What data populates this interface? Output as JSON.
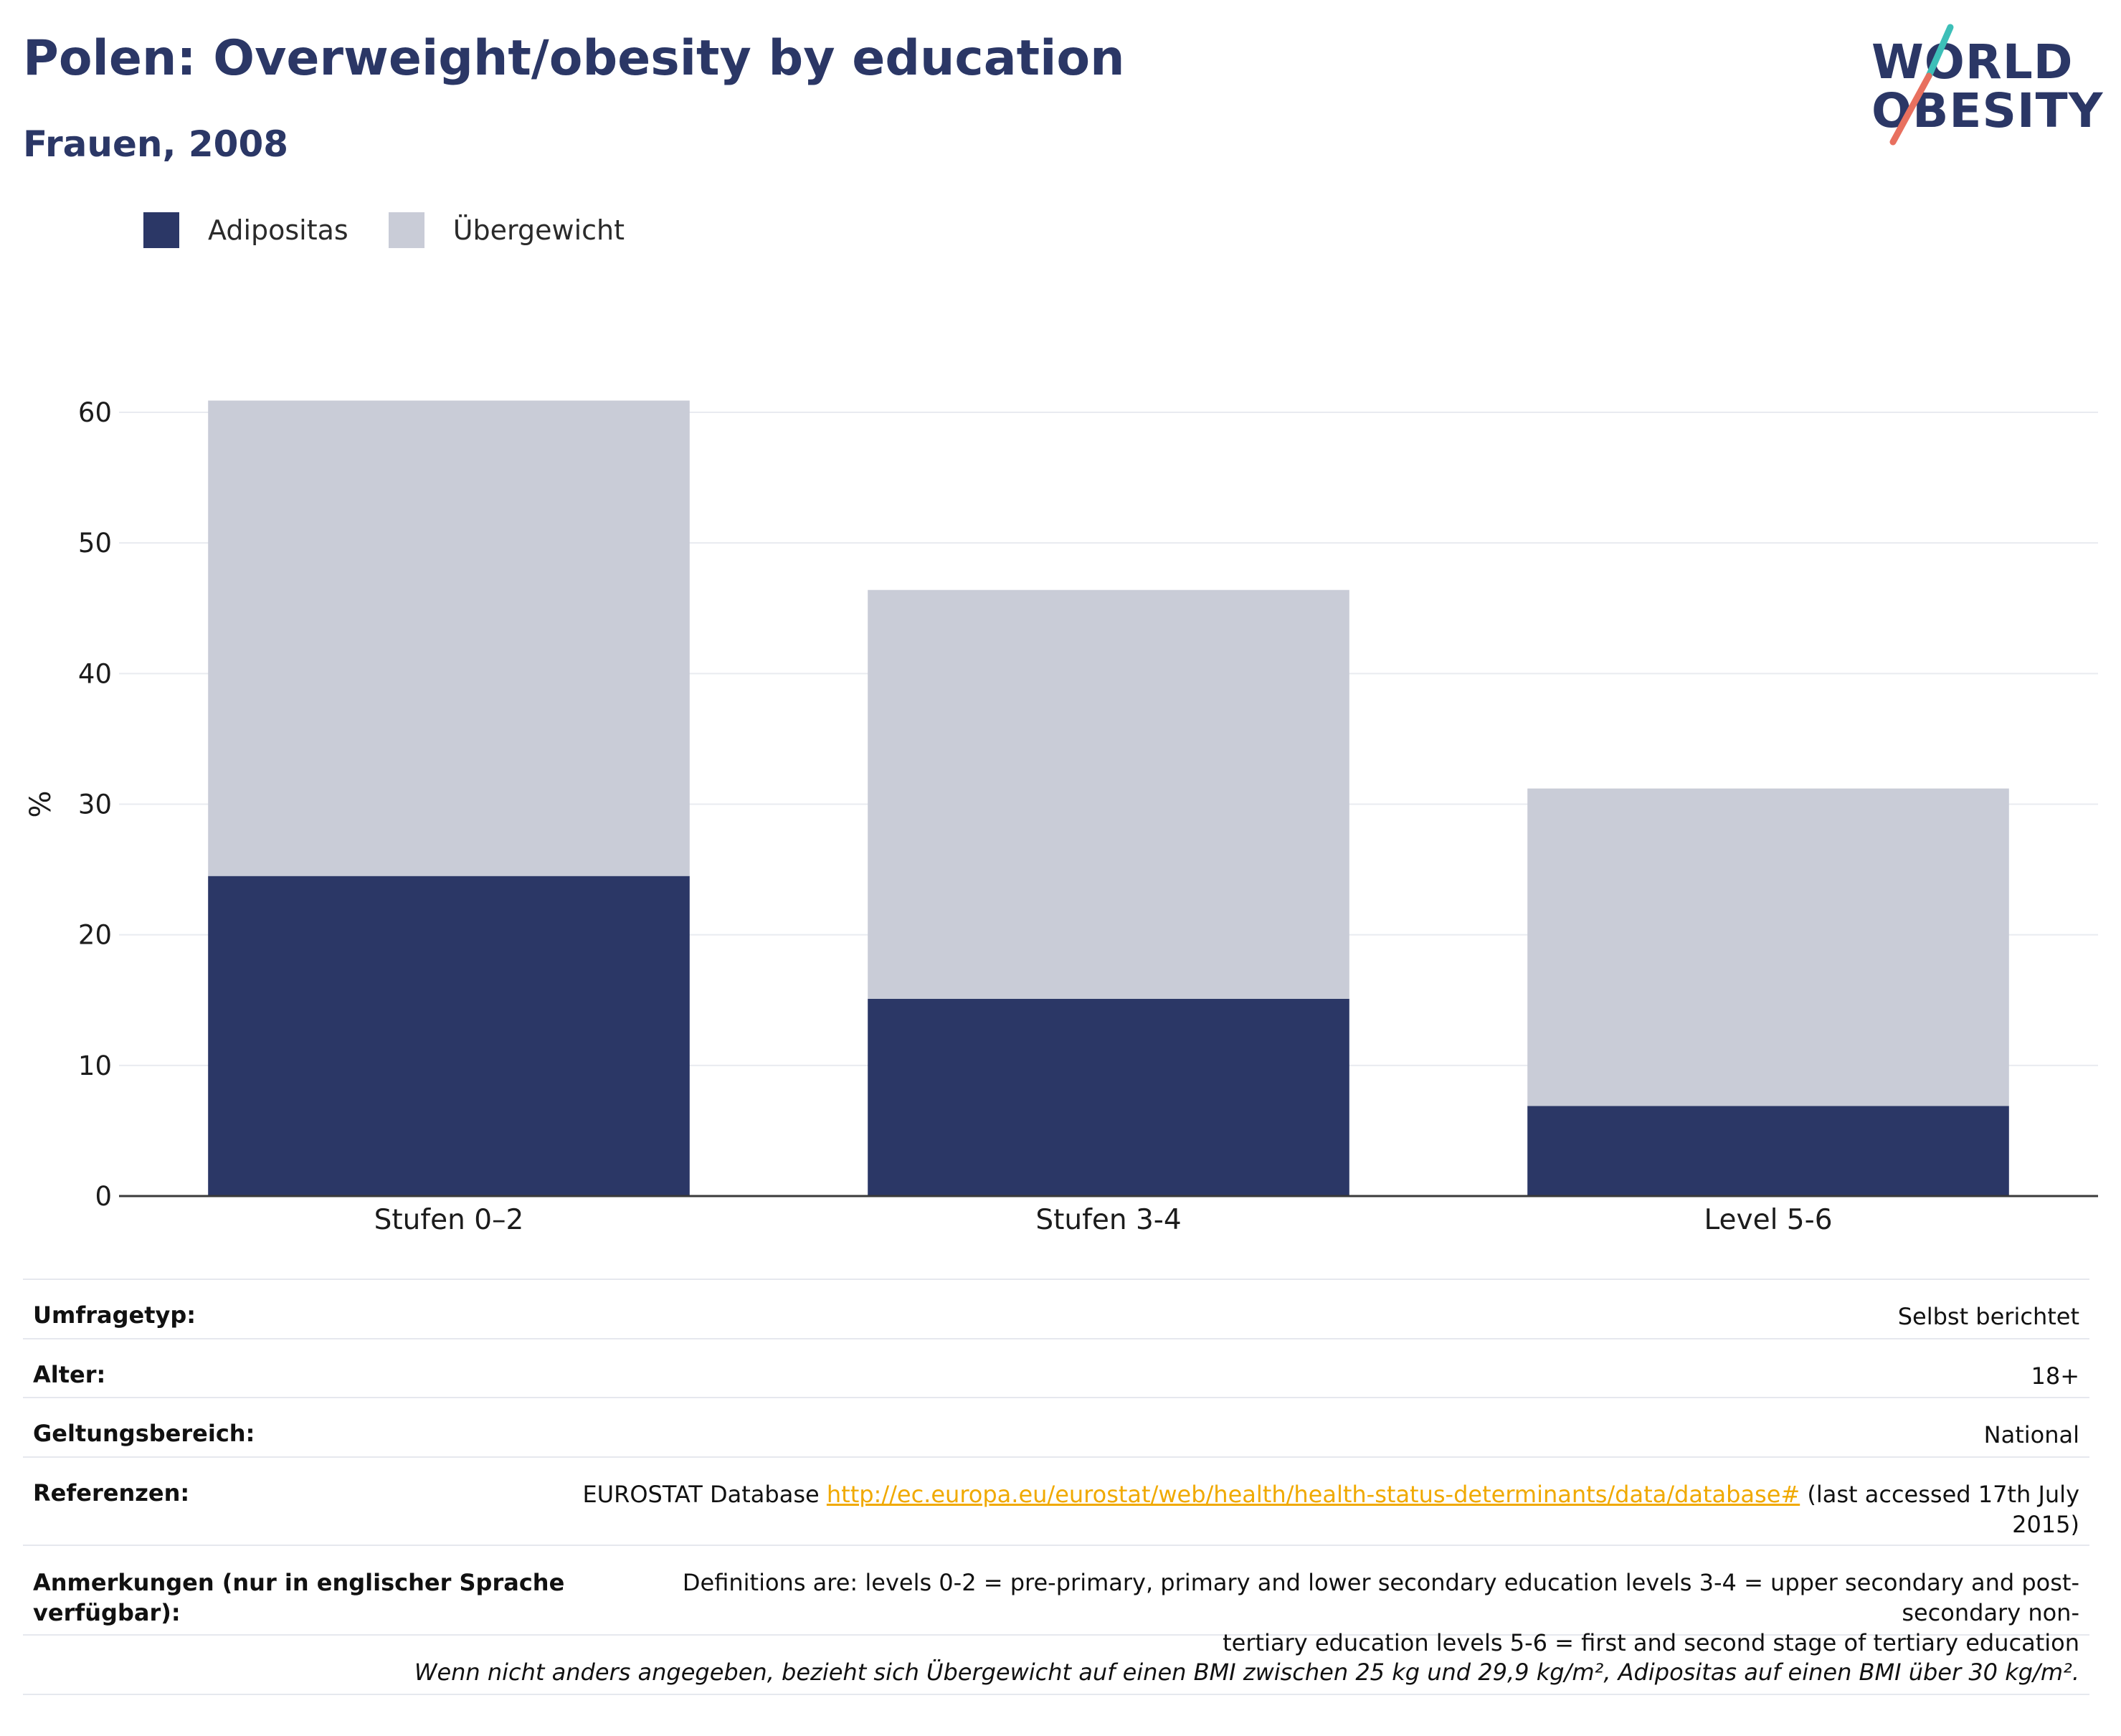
{
  "header": {
    "title": "Polen: Overweight/obesity by education",
    "subtitle": "Frauen, 2008"
  },
  "logo": {
    "line1": "WORLD",
    "line2": "OBESITY"
  },
  "colors": {
    "obesity": "#2b3766",
    "overweight": "#c9ccd7",
    "title": "#2b3766",
    "link": "#f0a900",
    "logo_slash_teal": "#3dbfb8",
    "logo_slash_coral": "#e8705f"
  },
  "legend": {
    "items": [
      {
        "label": "Adipositas",
        "color": "#2b3766"
      },
      {
        "label": "Übergewicht",
        "color": "#c9ccd7"
      }
    ]
  },
  "chart_data": {
    "type": "bar",
    "stacked": true,
    "categories": [
      "Stufen 0–2",
      "Stufen 3-4",
      "Level 5-6"
    ],
    "series": [
      {
        "name": "Adipositas",
        "values": [
          24.5,
          15.1,
          6.9
        ]
      },
      {
        "name": "Übergewicht",
        "values": [
          36.4,
          31.3,
          24.3
        ]
      }
    ],
    "ylabel": "%",
    "ylim": [
      0,
      60
    ],
    "yticks": [
      0,
      10,
      20,
      30,
      40,
      50,
      60
    ],
    "grid": true,
    "legend_position": "top-left"
  },
  "meta": {
    "survey_label": "Umfragetyp:",
    "survey_value": "Selbst berichtet",
    "age_label": "Alter:",
    "age_value": "18+",
    "scope_label": "Geltungsbereich:",
    "scope_value": "National",
    "references_label": "Referenzen:",
    "references_prefix": "EUROSTAT Database",
    "references_link": "http://ec.europa.eu/eurostat/web/health/health-status-determinants/data/database#",
    "references_suffix_line1": "(last accessed 17th July",
    "references_suffix_line2": "2015)",
    "notes_label_line1": "Anmerkungen (nur in englischer Sprache",
    "notes_label_line2": "verfügbar):",
    "notes_value_line1": "Definitions are: levels 0-2 = pre-primary, primary and lower secondary education levels 3-4 = upper secondary and post-secondary non-",
    "notes_value_line2": "tertiary education levels 5-6 = first and second stage of tertiary education",
    "footnote": "Wenn nicht anders angegeben, bezieht sich Übergewicht auf einen BMI zwischen 25 kg und 29,9 kg/m², Adipositas auf einen BMI über 30 kg/m²."
  }
}
